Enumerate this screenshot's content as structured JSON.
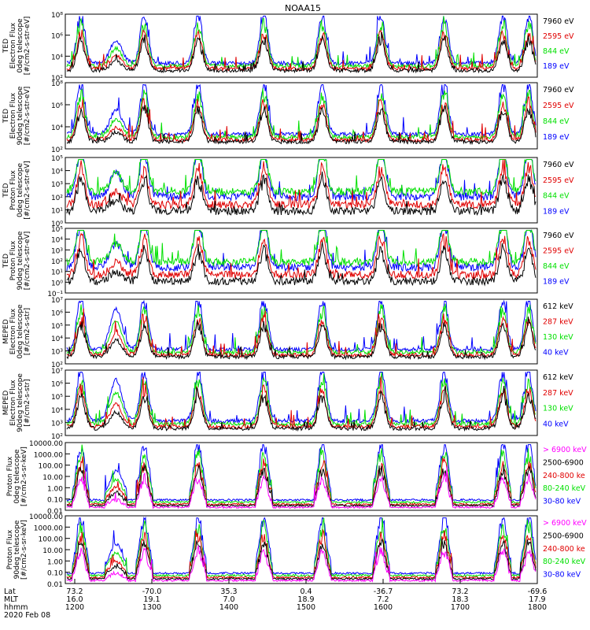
{
  "title": "NOAA15",
  "colors": {
    "black": "#000000",
    "red": "#e00000",
    "green": "#00e000",
    "blue": "#0000ff",
    "magenta": "#ff00ff"
  },
  "x_axis": {
    "row_labels": [
      "Lat",
      "MLT",
      "hhmm",
      "2020 Feb 08"
    ],
    "columns": [
      {
        "lat": "73.2",
        "mlt": "16.0",
        "hhmm": "1200"
      },
      {
        "lat": "-70.0",
        "mlt": "19.1",
        "hhmm": "1300"
      },
      {
        "lat": "35.3",
        "mlt": "7.0",
        "hhmm": "1400"
      },
      {
        "lat": "0.4",
        "mlt": "18.9",
        "hhmm": "1500"
      },
      {
        "lat": "-36.7",
        "mlt": "7.2",
        "hhmm": "1600"
      },
      {
        "lat": "73.2",
        "mlt": "18.3",
        "hhmm": "1700"
      },
      {
        "lat": "-69.6",
        "mlt": "17.9",
        "hhmm": "1800"
      }
    ]
  },
  "chart_data": [
    {
      "type": "line",
      "ylabel": [
        "TED",
        "Electron Flux",
        "0deg telescope",
        "[#/cm2-s-str-eV]"
      ],
      "yticks": [
        "10²",
        "10⁴",
        "10⁶",
        "10⁸"
      ],
      "series": [
        {
          "name": "7960 eV",
          "color": "black"
        },
        {
          "name": "2595 eV",
          "color": "red"
        },
        {
          "name": "844 eV",
          "color": "green"
        },
        {
          "name": "189 eV",
          "color": "blue"
        }
      ]
    },
    {
      "type": "line",
      "ylabel": [
        "TED",
        "Electron Flux",
        "90deg telescope",
        "[#/cm2-s-str-eV]"
      ],
      "yticks": [
        "10²",
        "10⁴",
        "10⁶",
        "10⁸"
      ],
      "series": [
        {
          "name": "7960 eV",
          "color": "black"
        },
        {
          "name": "2595 eV",
          "color": "red"
        },
        {
          "name": "844 eV",
          "color": "green"
        },
        {
          "name": "189 eV",
          "color": "blue"
        }
      ]
    },
    {
      "type": "line",
      "ylabel": [
        "TED",
        "Proton Flux",
        "0deg telescope",
        "[#/cm2-s-str-eV]"
      ],
      "yticks": [
        "10⁰",
        "10¹",
        "10²",
        "10³",
        "10⁴",
        "10⁵"
      ],
      "series": [
        {
          "name": "7960 eV",
          "color": "black"
        },
        {
          "name": "2595 eV",
          "color": "red"
        },
        {
          "name": "844 eV",
          "color": "green"
        },
        {
          "name": "189 eV",
          "color": "blue"
        }
      ]
    },
    {
      "type": "line",
      "ylabel": [
        "TED",
        "Proton Flux",
        "90deg telescope",
        "[#/cm2-s-str-eV]"
      ],
      "yticks": [
        "10⁻¹",
        "10⁰",
        "10¹",
        "10²",
        "10³",
        "10⁴",
        "10⁵"
      ],
      "series": [
        {
          "name": "7960 eV",
          "color": "black"
        },
        {
          "name": "2595 eV",
          "color": "red"
        },
        {
          "name": "844 eV",
          "color": "green"
        },
        {
          "name": "189 eV",
          "color": "blue"
        }
      ]
    },
    {
      "type": "line",
      "ylabel": [
        "MEPED",
        "Electron Flux",
        "0deg telescope",
        "[#/cm2-s-str]"
      ],
      "yticks": [
        "10²",
        "10³",
        "10⁴",
        "10⁵",
        "10⁶",
        "10⁷"
      ],
      "series": [
        {
          "name": "612 keV",
          "color": "black"
        },
        {
          "name": "287 keV",
          "color": "red"
        },
        {
          "name": "130 keV",
          "color": "green"
        },
        {
          "name": "40 keV",
          "color": "blue"
        }
      ]
    },
    {
      "type": "line",
      "ylabel": [
        "MEPED",
        "Electron Flux",
        "90deg telescope",
        "[#/cm2-s-str]"
      ],
      "yticks": [
        "10²",
        "10³",
        "10⁴",
        "10⁵",
        "10⁶",
        "10⁷"
      ],
      "series": [
        {
          "name": "612 keV",
          "color": "black"
        },
        {
          "name": "287 keV",
          "color": "red"
        },
        {
          "name": "130 keV",
          "color": "green"
        },
        {
          "name": "40 keV",
          "color": "blue"
        }
      ]
    },
    {
      "type": "line",
      "ylabel": [
        "Proton Flux",
        "0deg telescope",
        "[#/cm2-s-sr-keV]"
      ],
      "yticks": [
        "0.01",
        "0.10",
        "1.00",
        "10.00",
        "100.00",
        "1000.00",
        "10000.00"
      ],
      "series": [
        {
          "name": "> 6900 keV",
          "color": "magenta"
        },
        {
          "name": "2500-6900",
          "color": "black"
        },
        {
          "name": "240-800 ke",
          "color": "red"
        },
        {
          "name": "80-240 keV",
          "color": "green"
        },
        {
          "name": "30-80 keV",
          "color": "blue"
        }
      ]
    },
    {
      "type": "line",
      "ylabel": [
        "Proton Flux",
        "90deg telescope",
        "[#/cm2-s-sr-keV]"
      ],
      "yticks": [
        "0.01",
        "0.10",
        "1.00",
        "10.00",
        "100.00",
        "1000.00",
        "10000.00"
      ],
      "series": [
        {
          "name": "> 6900 keV",
          "color": "magenta"
        },
        {
          "name": "2500-6900",
          "color": "black"
        },
        {
          "name": "240-800 ke",
          "color": "red"
        },
        {
          "name": "80-240 keV",
          "color": "green"
        },
        {
          "name": "30-80 keV",
          "color": "blue"
        }
      ]
    }
  ]
}
